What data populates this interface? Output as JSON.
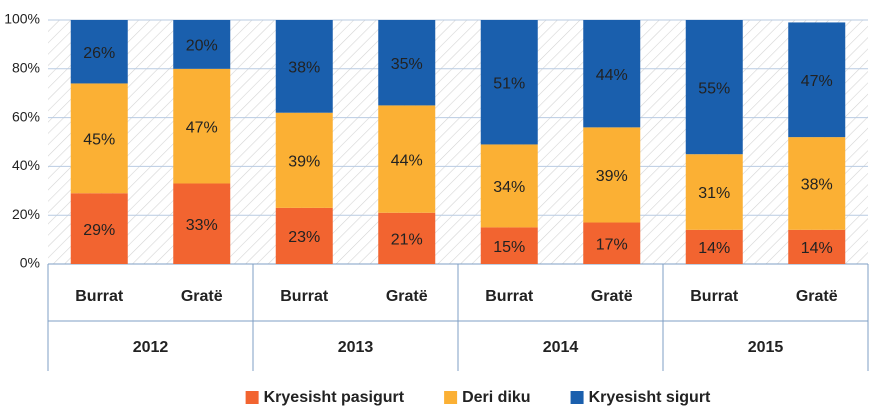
{
  "chart_data": {
    "type": "stacked_bar",
    "categories": [
      "Burrat",
      "Gratë",
      "Burrat",
      "Gratë",
      "Burrat",
      "Gratë",
      "Burrat",
      "Gratë"
    ],
    "groups": [
      "2012",
      "2013",
      "2014",
      "2015"
    ],
    "series": [
      {
        "name": "Kryesisht pasigurt",
        "color": "#f26430",
        "values": [
          29,
          33,
          23,
          21,
          15,
          17,
          14,
          14
        ],
        "value_labels": [
          "29%",
          "33%",
          "23%",
          "21%",
          "15%",
          "17%",
          "14%",
          "14%"
        ]
      },
      {
        "name": "Deri diku",
        "color": "#fbb034",
        "values": [
          45,
          47,
          39,
          44,
          34,
          39,
          31,
          38
        ],
        "value_labels": [
          "45%",
          "47%",
          "39%",
          "44%",
          "34%",
          "39%",
          "31%",
          "38%"
        ]
      },
      {
        "name": "Kryesisht sigurt",
        "color": "#1a5fad",
        "values": [
          26,
          20,
          38,
          35,
          51,
          44,
          55,
          47
        ],
        "value_labels": [
          "26%",
          "20%",
          "38%",
          "35%",
          "51%",
          "44%",
          "55%",
          "47%"
        ]
      }
    ],
    "ylim": [
      0,
      100
    ],
    "yticks": [
      {
        "value": 0,
        "label": "0%"
      },
      {
        "value": 20,
        "label": "20%"
      },
      {
        "value": 40,
        "label": "40%"
      },
      {
        "value": 60,
        "label": "60%"
      },
      {
        "value": 80,
        "label": "80%"
      },
      {
        "value": 100,
        "label": "100%"
      }
    ],
    "grid": true,
    "legend": "bottom"
  }
}
